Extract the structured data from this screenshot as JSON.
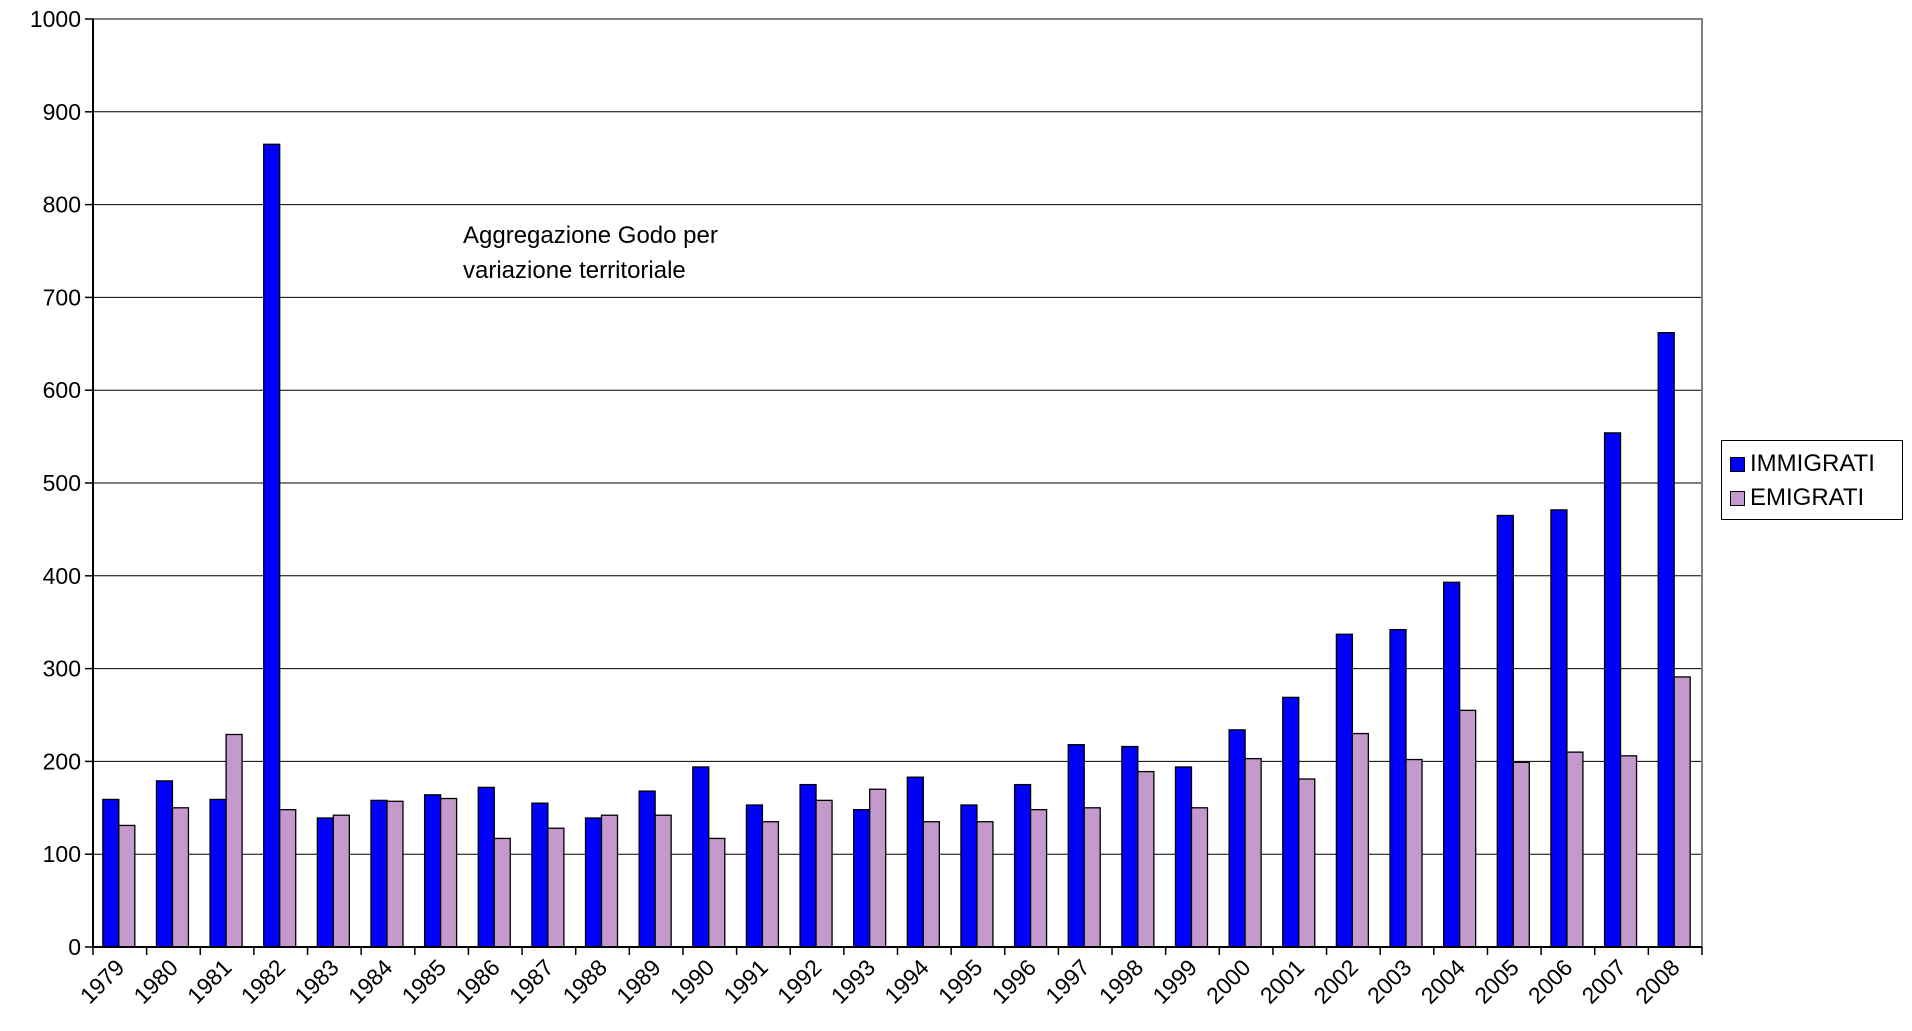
{
  "chart_data": {
    "type": "bar",
    "title": "",
    "xlabel": "",
    "ylabel": "",
    "ylim": [
      0,
      1000
    ],
    "yticks": [
      0,
      100,
      200,
      300,
      400,
      500,
      600,
      700,
      800,
      900,
      1000
    ],
    "grid": true,
    "legend_position": "right",
    "annotation": [
      "Aggregazione Godo per",
      "variazione territoriale"
    ],
    "categories": [
      "1979",
      "1980",
      "1981",
      "1982",
      "1983",
      "1984",
      "1985",
      "1986",
      "1987",
      "1988",
      "1989",
      "1990",
      "1991",
      "1992",
      "1993",
      "1994",
      "1995",
      "1996",
      "1997",
      "1998",
      "1999",
      "2000",
      "2001",
      "2002",
      "2003",
      "2004",
      "2005",
      "2006",
      "2007",
      "2008"
    ],
    "series": [
      {
        "name": "IMMIGRATI",
        "color": "#0000ff",
        "values": [
          159,
          179,
          159,
          865,
          139,
          158,
          164,
          172,
          155,
          139,
          168,
          194,
          153,
          175,
          148,
          183,
          153,
          175,
          218,
          216,
          194,
          234,
          269,
          337,
          342,
          393,
          465,
          471,
          554,
          662
        ]
      },
      {
        "name": "EMIGRATI",
        "color": "#c499cc",
        "values": [
          131,
          150,
          229,
          148,
          142,
          157,
          160,
          117,
          128,
          142,
          142,
          117,
          135,
          158,
          170,
          135,
          135,
          148,
          150,
          189,
          150,
          203,
          181,
          230,
          202,
          255,
          199,
          210,
          206,
          291
        ]
      }
    ]
  }
}
